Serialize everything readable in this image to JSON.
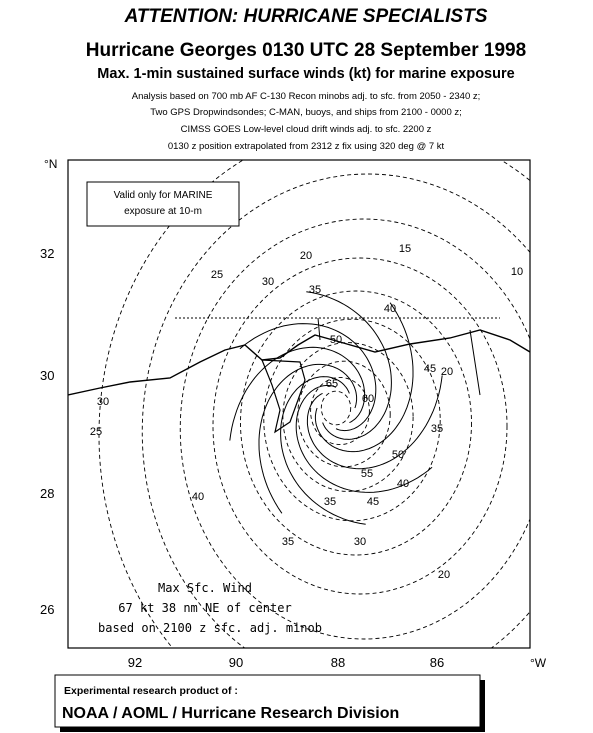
{
  "header": {
    "banner": "ATTENTION: HURRICANE SPECIALISTS",
    "title": "Hurricane Georges 0130 UTC 28 September 1998",
    "subtitle": "Max. 1-min sustained surface winds (kt) for marine exposure",
    "notes": [
      "Analysis based on 700 mb AF C-130 Recon minobs adj. to sfc. from 2050 - 2340 z;",
      "Two GPS Dropwindsondes;  C-MAN, buoys, and ships from 2100 - 0000 z;",
      "CIMSS GOES Low-level cloud drift winds adj. to sfc. 2200 z",
      "0130 z position extrapolated from 2312 z fix using 320 deg @ 7 kt"
    ]
  },
  "map": {
    "valid_note": [
      "Valid only for MARINE",
      "exposure at 10-m"
    ],
    "lat_ticks": [
      "32",
      "30",
      "28",
      "26"
    ],
    "lon_ticks": [
      "92",
      "90",
      "88",
      "86"
    ],
    "lat_unit": "°N",
    "lon_unit": "°W",
    "contour_labels": [
      "15",
      "10",
      "20",
      "25",
      "30",
      "35",
      "40",
      "50",
      "65",
      "60",
      "55",
      "50",
      "45",
      "40",
      "35",
      "20",
      "35",
      "30",
      "35",
      "40",
      "25",
      "30",
      "20",
      "45"
    ],
    "max_wind": [
      "Max Sfc. Wind",
      "67 kt  38 nm NE of center",
      "based on 2100 z sfc. adj. minob"
    ]
  },
  "footer": {
    "line1": "Experimental research product of :",
    "line2": "NOAA / AOML / Hurricane Research Division"
  }
}
